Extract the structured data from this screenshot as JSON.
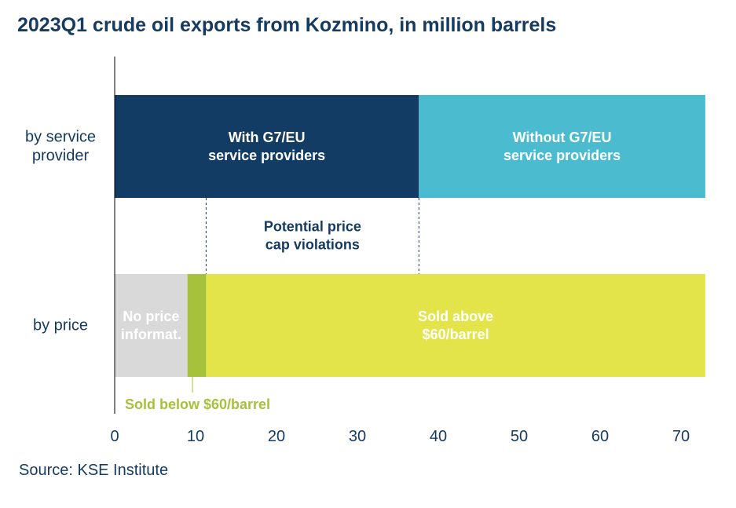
{
  "title": "2023Q1 crude oil exports from Kozmino, in million barrels",
  "source": "Source: KSE Institute",
  "chart_data": {
    "type": "bar",
    "orientation": "horizontal",
    "stacked": true,
    "xlim": [
      0,
      73
    ],
    "xticks": [
      0,
      10,
      20,
      30,
      40,
      50,
      60,
      70
    ],
    "categories": [
      "by service provider",
      "by price"
    ],
    "category_lines": [
      [
        "by service",
        "provider"
      ],
      [
        "by price"
      ]
    ],
    "rows": [
      {
        "category": "by service provider",
        "segments": [
          {
            "lines": [
              "With G7/EU",
              "service providers"
            ],
            "value": 37.6,
            "color": "#123c63",
            "label_color": "#ffffff"
          },
          {
            "lines": [
              "Without G7/EU",
              "service providers"
            ],
            "value": 35.4,
            "color": "#4bbccf",
            "label_color": "#ffffff"
          }
        ]
      },
      {
        "category": "by price",
        "segments": [
          {
            "lines": [
              "No price",
              "informat."
            ],
            "value": 9.0,
            "color": "#d9d9d9",
            "label_color": "#ffffff"
          },
          {
            "lines": [],
            "value": 2.3,
            "color": "#a6c13b",
            "label_color": "#ffffff"
          },
          {
            "lines": [
              "Sold above",
              "$60/barrel"
            ],
            "value": 61.7,
            "color": "#e3e44a",
            "label_color": "#ffffff"
          }
        ]
      }
    ],
    "annotations": [
      {
        "lines": [
          "Potential price",
          "cap violations"
        ],
        "from": 11.3,
        "to": 37.6,
        "color": "#163b62"
      },
      {
        "lines": [
          "Sold below $60/barrel"
        ],
        "at": 10.2,
        "color": "#a6c13b"
      }
    ],
    "grid": false
  }
}
